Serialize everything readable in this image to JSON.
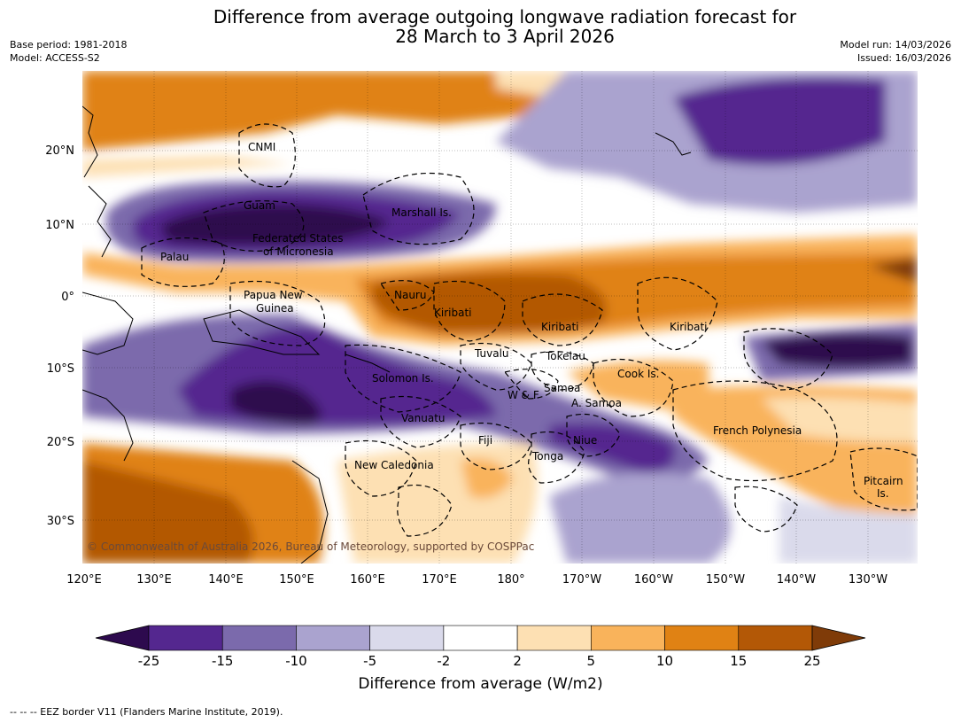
{
  "title": {
    "line1": "Difference from average outgoing longwave radiation forecast for",
    "line2": "28 March to 3 April 2026"
  },
  "header_left": {
    "base_period": "Base period: 1981-2018",
    "model": "Model: ACCESS-S2"
  },
  "header_right": {
    "model_run": "Model run: 14/03/2026",
    "issued": "Issued: 16/03/2026"
  },
  "map": {
    "lon_ticks": [
      "120°E",
      "130°E",
      "140°E",
      "150°E",
      "160°E",
      "170°E",
      "180°",
      "170°W",
      "160°W",
      "150°W",
      "140°W",
      "130°W"
    ],
    "lat_ticks": [
      "20°N",
      "10°N",
      "0°",
      "10°S",
      "20°S",
      "30°S"
    ],
    "place_labels": [
      "CNMI",
      "Guam",
      "Marshall Is.",
      "Federated States",
      "of Micronesia",
      "Palau",
      "Papua New",
      "Guinea",
      "Nauru",
      "Kiribati",
      "Kiribati",
      "Kiribati",
      "Tuvalu",
      "Tokelau",
      "Cook Is.",
      "Solomon Is.",
      "W & F",
      "Samoa",
      "A. Samoa",
      "Vanuatu",
      "Fiji",
      "Niue",
      "Tonga",
      "New Caledonia",
      "French Polynesia",
      "Pitcairn",
      "Is."
    ],
    "copyright": "© Commonwealth of Australia 2026, Bureau of Meteorology, supported by COSPPac"
  },
  "colorbar": {
    "ticks": [
      "-25",
      "-15",
      "-10",
      "-5",
      "-2",
      "2",
      "5",
      "10",
      "15",
      "25"
    ],
    "colors": [
      "#2d0a4e",
      "#54278f",
      "#7b6aac",
      "#aaa3cf",
      "#dadaeb",
      "#ffffff",
      "#fde0b3",
      "#f9b35b",
      "#e08214",
      "#b35806",
      "#7f3b08"
    ],
    "title": "Difference from average (W/m2)"
  },
  "footnote": "--  --  -- EEZ border V11 (Flanders Marine Institute, 2019)."
}
